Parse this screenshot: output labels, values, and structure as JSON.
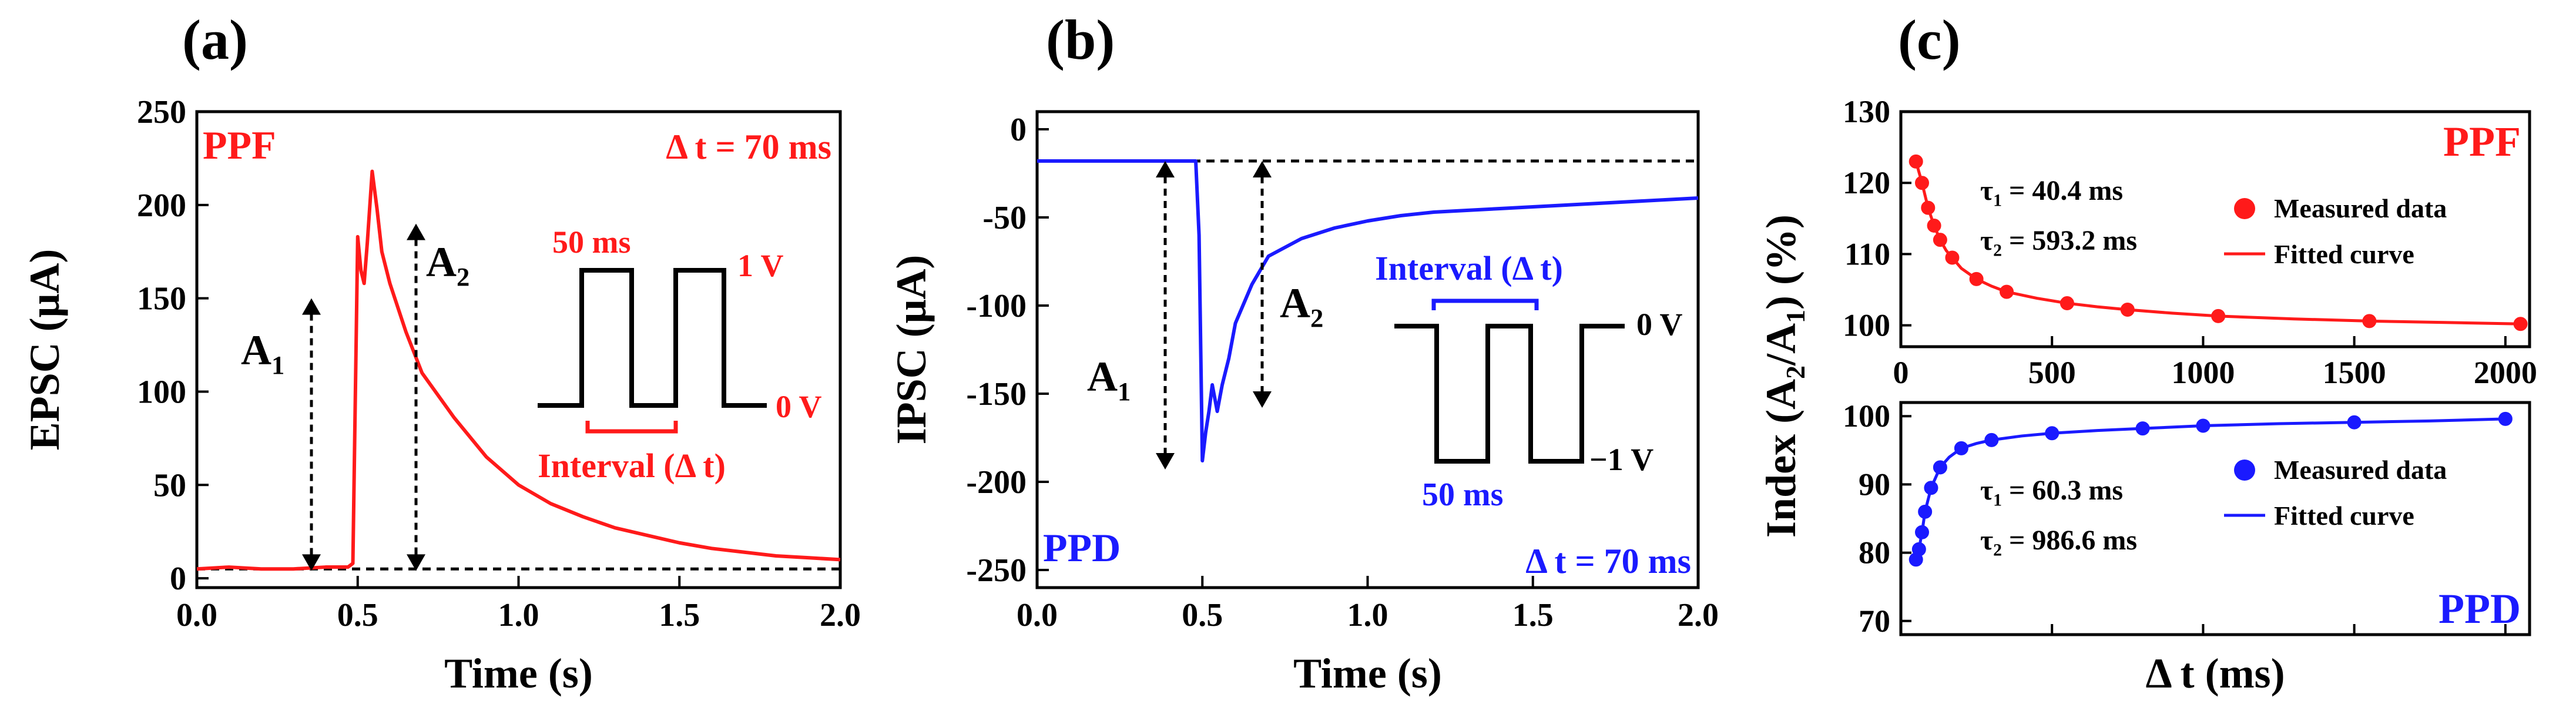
{
  "colors": {
    "red": "#ff1a1a",
    "blue": "#1a1aff",
    "black": "#000000"
  },
  "chart_data": [
    {
      "id": "a",
      "type": "line",
      "panel_label": "(a)",
      "title": "",
      "xlabel": "Time (s)",
      "ylabel": "EPSC (μA)",
      "xlim": [
        0,
        2.0
      ],
      "ylim": [
        -5,
        250
      ],
      "xticks": [
        0,
        0.5,
        1.0,
        1.5,
        2.0
      ],
      "xtick_labels": [
        "0.0",
        "0.5",
        "1.0",
        "1.5",
        "2.0"
      ],
      "yticks": [
        0,
        50,
        100,
        150,
        200,
        250
      ],
      "ytick_labels": [
        "0",
        "50",
        "100",
        "150",
        "200",
        "250"
      ],
      "baseline": 5,
      "series": [
        {
          "name": "EPSC",
          "color": "#ff1a1a",
          "x": [
            0.0,
            0.1,
            0.2,
            0.3,
            0.4,
            0.47,
            0.485,
            0.5,
            0.51,
            0.52,
            0.53,
            0.545,
            0.56,
            0.575,
            0.6,
            0.65,
            0.7,
            0.8,
            0.9,
            1.0,
            1.1,
            1.2,
            1.3,
            1.4,
            1.5,
            1.6,
            1.7,
            1.8,
            1.9,
            2.0
          ],
          "y": [
            5,
            6,
            5,
            5,
            6,
            6,
            8,
            183,
            165,
            158,
            180,
            218,
            198,
            175,
            158,
            132,
            110,
            86,
            65,
            50,
            40,
            33,
            27,
            23,
            19,
            16,
            14,
            12,
            11,
            10
          ]
        }
      ],
      "annotations": {
        "left_label": "PPF",
        "right_label": "Δ t = 70 ms",
        "a1_label": "A",
        "a1_sub": "1",
        "a2_label": "A",
        "a2_sub": "2",
        "pulse_width_label": "50 ms",
        "high_level_label": "1 V",
        "low_level_label": "0 V",
        "interval_label": "Interval (Δ t)"
      }
    },
    {
      "id": "b",
      "type": "line",
      "panel_label": "(b)",
      "title": "",
      "xlabel": "Time (s)",
      "ylabel": "IPSC (μA)",
      "xlim": [
        0,
        2.0
      ],
      "ylim": [
        -260,
        10
      ],
      "xticks": [
        0,
        0.5,
        1.0,
        1.5,
        2.0
      ],
      "xtick_labels": [
        "0.0",
        "0.5",
        "1.0",
        "1.5",
        "2.0"
      ],
      "yticks": [
        0,
        -50,
        -100,
        -150,
        -200,
        -250
      ],
      "ytick_labels": [
        "0",
        "-50",
        "-100",
        "-150",
        "-200",
        "-250"
      ],
      "baseline": -18,
      "series": [
        {
          "name": "IPSC",
          "color": "#1a1aff",
          "x": [
            0.0,
            0.1,
            0.2,
            0.3,
            0.4,
            0.48,
            0.49,
            0.5,
            0.51,
            0.52,
            0.53,
            0.545,
            0.56,
            0.58,
            0.6,
            0.65,
            0.7,
            0.8,
            0.9,
            1.0,
            1.1,
            1.2,
            1.4,
            1.6,
            1.8,
            2.0
          ],
          "y": [
            -18,
            -18,
            -18,
            -18,
            -18,
            -18,
            -60,
            -188,
            -172,
            -160,
            -145,
            -160,
            -145,
            -130,
            -110,
            -88,
            -72,
            -62,
            -56,
            -52,
            -49,
            -47,
            -45,
            -43,
            -41,
            -39
          ]
        }
      ],
      "annotations": {
        "left_label": "PPD",
        "right_label": "Δ t = 70 ms",
        "a1_label": "A",
        "a1_sub": "1",
        "a2_label": "A",
        "a2_sub": "2",
        "pulse_width_label": "50 ms",
        "high_level_label": "0 V",
        "low_level_label": "−1 V",
        "interval_label": "Interval (Δ t)"
      }
    },
    {
      "id": "c",
      "type": "scatter",
      "panel_label": "(c)",
      "title": "",
      "xlabel": "Δ t (ms)",
      "ylabel_parts": [
        "Index (A",
        "2",
        "/A",
        "1",
        ") (%)"
      ],
      "xlim": [
        0,
        2080
      ],
      "xticks": [
        0,
        500,
        1000,
        1500,
        2000
      ],
      "xtick_labels": [
        "0",
        "500",
        "1000",
        "1500",
        "2000"
      ],
      "subplots": [
        {
          "name": "PPF",
          "color": "#ff1a1a",
          "ylim": [
            97,
            130
          ],
          "yticks": [
            100,
            110,
            120,
            130
          ],
          "ytick_labels": [
            "100",
            "110",
            "120",
            "130"
          ],
          "measured": {
            "x": [
              50,
              70,
              90,
              110,
              130,
              170,
              250,
              350,
              550,
              750,
              1050,
              1550,
              2050
            ],
            "y": [
              123,
              120,
              116.5,
              114,
              112,
              109.5,
              106.5,
              104.7,
              103.1,
              102.2,
              101.3,
              100.6,
              100.2
            ]
          },
          "fit": {
            "x": [
              50,
              70,
              90,
              110,
              130,
              150,
              170,
              200,
              250,
              300,
              350,
              450,
              550,
              650,
              750,
              900,
              1050,
              1300,
              1550,
              1800,
              2050
            ],
            "y": [
              123,
              120,
              116.5,
              114,
              112,
              110.5,
              109.5,
              108,
              106.5,
              105.5,
              104.7,
              103.8,
              103.1,
              102.6,
              102.2,
              101.7,
              101.3,
              100.9,
              100.6,
              100.4,
              100.2
            ]
          },
          "tau1_label": "τ",
          "tau1_sub": "1",
          "tau1_value": " = 40.4 ms",
          "tau2_label": "τ",
          "tau2_sub": "2",
          "tau2_value": " = 593.2 ms",
          "legend_measured": "Measured data",
          "legend_fitted": "Fitted curve",
          "corner_label": "PPF"
        },
        {
          "name": "PPD",
          "color": "#1a1aff",
          "ylim": [
            68,
            102
          ],
          "yticks": [
            70,
            80,
            90,
            100
          ],
          "ytick_labels": [
            "70",
            "80",
            "90",
            "100"
          ],
          "measured": {
            "x": [
              50,
              60,
              70,
              80,
              100,
              130,
              200,
              300,
              500,
              800,
              1000,
              1500,
              2000
            ],
            "y": [
              79,
              80.5,
              83,
              86,
              89.5,
              92.5,
              95.3,
              96.5,
              97.5,
              98.2,
              98.6,
              99.1,
              99.6
            ]
          },
          "fit": {
            "x": [
              50,
              60,
              70,
              80,
              100,
              130,
              160,
              200,
              250,
              300,
              400,
              500,
              650,
              800,
              1000,
              1250,
              1500,
              1750,
              2000
            ],
            "y": [
              79,
              80.5,
              83,
              86,
              89.5,
              92.5,
              94,
              95.3,
              96,
              96.5,
              97.1,
              97.5,
              97.9,
              98.2,
              98.6,
              98.9,
              99.1,
              99.3,
              99.6
            ]
          },
          "tau1_label": "τ",
          "tau1_sub": "1",
          "tau1_value": " = 60.3 ms",
          "tau2_label": "τ",
          "tau2_sub": "2",
          "tau2_value": " = 986.6 ms",
          "legend_measured": "Measured data",
          "legend_fitted": "Fitted curve",
          "corner_label": "PPD"
        }
      ]
    }
  ]
}
